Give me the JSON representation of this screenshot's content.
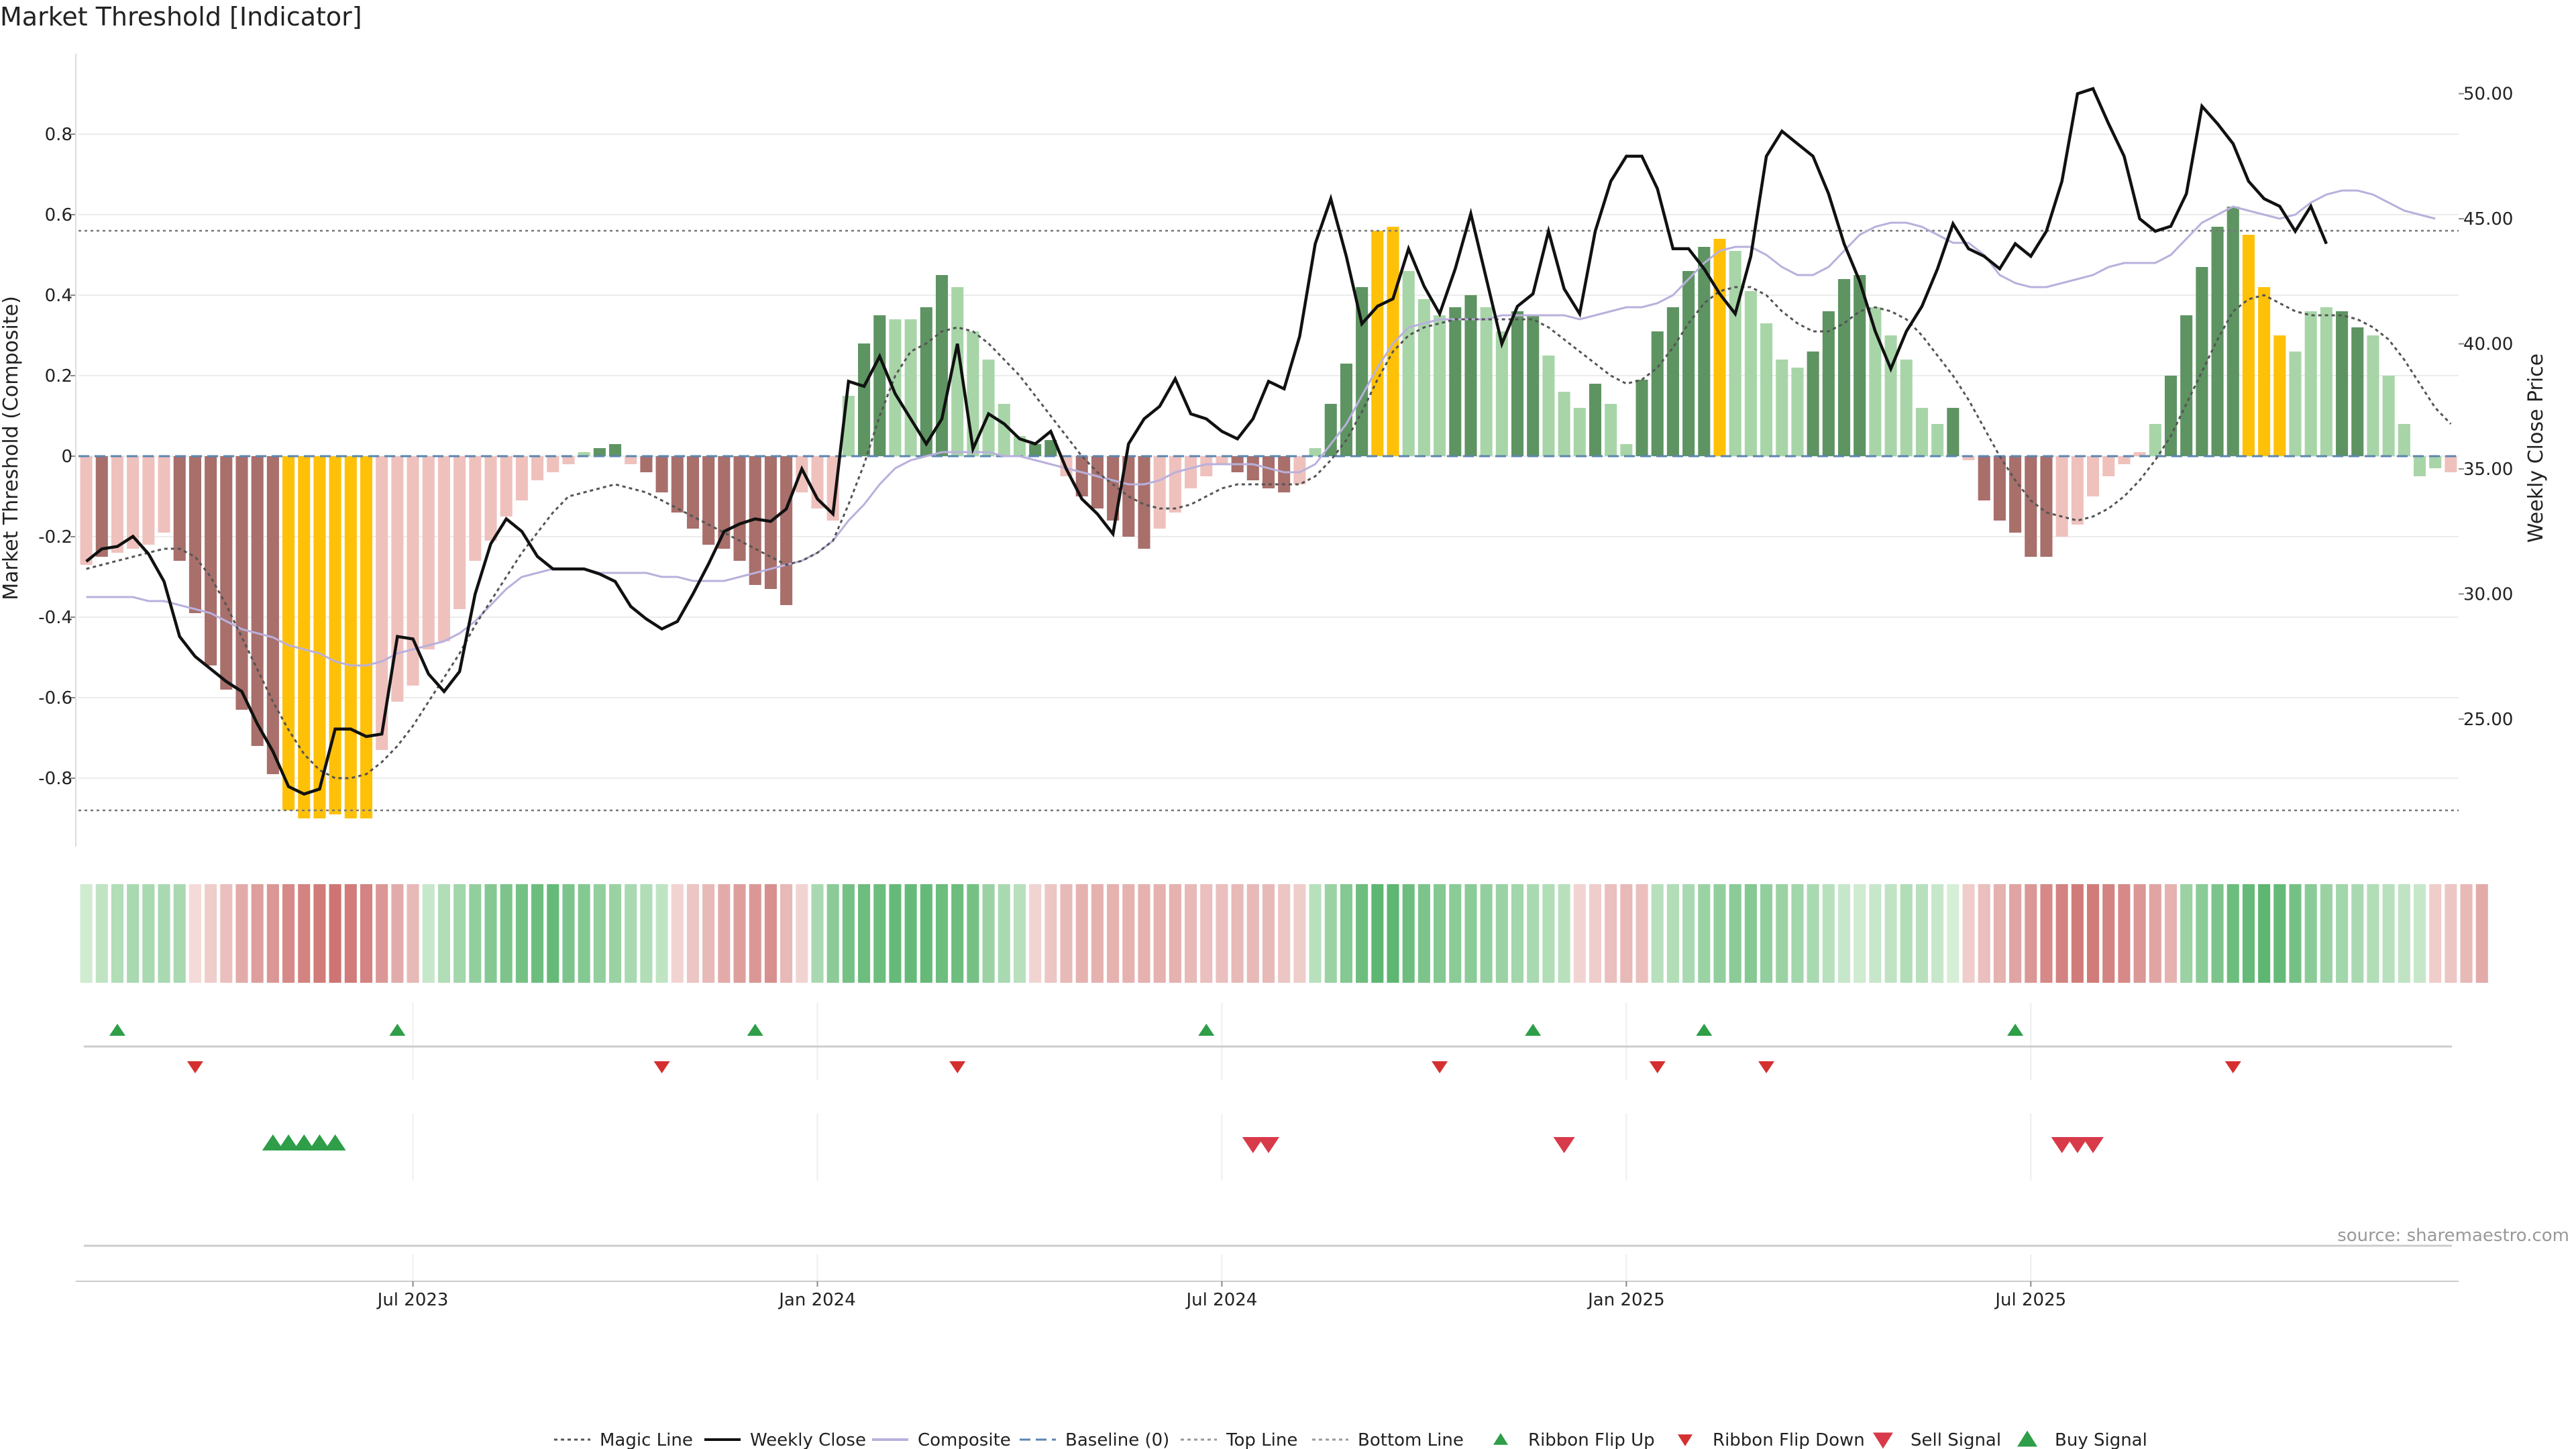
{
  "title": "Market Threshold [Indicator]",
  "source": "source: sharemaestro.com",
  "chart_data": {
    "type": "bar",
    "ylabel_left": "Market Threshold (Composite)",
    "ylabel_right": "Weekly Close Price",
    "ylim_left": [
      -0.97,
      1.0
    ],
    "ylim_right": [
      19.9,
      51.6
    ],
    "yticks_left": [
      "0.8",
      "0.6",
      "0.4",
      "0.2",
      "0",
      "-0.2",
      "-0.4",
      "-0.6",
      "-0.8"
    ],
    "yticks_left_values": [
      0.8,
      0.6,
      0.4,
      0.2,
      0,
      -0.2,
      -0.4,
      -0.6,
      -0.8
    ],
    "yticks_right": [
      "50.00",
      "45.00",
      "40.00",
      "35.00",
      "30.00",
      "25.00"
    ],
    "yticks_right_values": [
      50,
      45,
      40,
      35,
      30,
      25
    ],
    "xticks": [
      "Jul 2023",
      "Jan 2024",
      "Jul 2024",
      "Jan 2025",
      "Jul 2025"
    ],
    "xticks_index": [
      21,
      47,
      73,
      99,
      125
    ],
    "top_line": 0.56,
    "bottom_line": -0.88,
    "baseline": 0,
    "composite": [
      -0.27,
      -0.25,
      -0.24,
      -0.23,
      -0.22,
      -0.19,
      -0.26,
      -0.39,
      -0.52,
      -0.58,
      -0.63,
      -0.72,
      -0.79,
      -0.88,
      -0.9,
      -0.9,
      -0.89,
      -0.9,
      -0.9,
      -0.73,
      -0.61,
      -0.57,
      -0.48,
      -0.46,
      -0.38,
      -0.26,
      -0.21,
      -0.15,
      -0.11,
      -0.06,
      -0.04,
      -0.02,
      0.01,
      0.02,
      0.03,
      -0.02,
      -0.04,
      -0.09,
      -0.14,
      -0.18,
      -0.22,
      -0.23,
      -0.26,
      -0.32,
      -0.33,
      -0.37,
      -0.09,
      -0.13,
      -0.16,
      0.15,
      0.28,
      0.35,
      0.34,
      0.34,
      0.37,
      0.45,
      0.42,
      0.31,
      0.24,
      0.13,
      0.05,
      0.03,
      0.04,
      -0.05,
      -0.1,
      -0.13,
      -0.16,
      -0.2,
      -0.23,
      -0.18,
      -0.14,
      -0.08,
      -0.05,
      -0.02,
      -0.04,
      -0.06,
      -0.08,
      -0.09,
      -0.07,
      0.02,
      0.13,
      0.23,
      0.42,
      0.56,
      0.57,
      0.46,
      0.39,
      0.35,
      0.37,
      0.4,
      0.37,
      0.31,
      0.36,
      0.35,
      0.25,
      0.16,
      0.12,
      0.18,
      0.13,
      0.03,
      0.19,
      0.31,
      0.37,
      0.46,
      0.52,
      0.54,
      0.51,
      0.41,
      0.33,
      0.24,
      0.22,
      0.26,
      0.36,
      0.44,
      0.45,
      0.37,
      0.3,
      0.24,
      0.12,
      0.08,
      0.12,
      -0.01,
      -0.11,
      -0.16,
      -0.19,
      -0.25,
      -0.25,
      -0.2,
      -0.17,
      -0.1,
      -0.05,
      -0.02,
      0.01,
      0.08,
      0.2,
      0.35,
      0.47,
      0.57,
      0.62,
      0.55,
      0.42,
      0.3,
      0.26,
      0.36,
      0.37,
      0.36,
      0.32,
      0.3,
      0.2,
      0.08,
      -0.05,
      -0.03,
      -0.04
    ],
    "bar_colors": [
      "#efc1bd",
      "#a86f6b",
      "#efc1bd",
      "#efc1bd",
      "#efc1bd",
      "#efc1bd",
      "#a86f6b",
      "#a86f6b",
      "#a86f6b",
      "#a86f6b",
      "#a86f6b",
      "#a86f6b",
      "#a86f6b",
      "#ffc107",
      "#ffc107",
      "#ffc107",
      "#ffc107",
      "#ffc107",
      "#ffc107",
      "#efc1bd",
      "#efc1bd",
      "#efc1bd",
      "#efc1bd",
      "#efc1bd",
      "#efc1bd",
      "#efc1bd",
      "#efc1bd",
      "#efc1bd",
      "#efc1bd",
      "#efc1bd",
      "#efc1bd",
      "#efc1bd",
      "#a8d5a8",
      "#5e9462",
      "#5e9462",
      "#efc1bd",
      "#a86f6b",
      "#a86f6b",
      "#a86f6b",
      "#a86f6b",
      "#a86f6b",
      "#a86f6b",
      "#a86f6b",
      "#a86f6b",
      "#a86f6b",
      "#a86f6b",
      "#efc1bd",
      "#efc1bd",
      "#efc1bd",
      "#a8d5a8",
      "#5e9462",
      "#5e9462",
      "#a8d5a8",
      "#a8d5a8",
      "#5e9462",
      "#5e9462",
      "#a8d5a8",
      "#a8d5a8",
      "#a8d5a8",
      "#a8d5a8",
      "#a8d5a8",
      "#5e9462",
      "#5e9462",
      "#efc1bd",
      "#a86f6b",
      "#a86f6b",
      "#a86f6b",
      "#a86f6b",
      "#a86f6b",
      "#efc1bd",
      "#efc1bd",
      "#efc1bd",
      "#efc1bd",
      "#efc1bd",
      "#a86f6b",
      "#a86f6b",
      "#a86f6b",
      "#a86f6b",
      "#efc1bd",
      "#a8d5a8",
      "#5e9462",
      "#5e9462",
      "#5e9462",
      "#ffc107",
      "#ffc107",
      "#a8d5a8",
      "#a8d5a8",
      "#a8d5a8",
      "#5e9462",
      "#5e9462",
      "#a8d5a8",
      "#a8d5a8",
      "#5e9462",
      "#5e9462",
      "#a8d5a8",
      "#a8d5a8",
      "#a8d5a8",
      "#5e9462",
      "#a8d5a8",
      "#a8d5a8",
      "#5e9462",
      "#5e9462",
      "#5e9462",
      "#5e9462",
      "#5e9462",
      "#ffc107",
      "#a8d5a8",
      "#a8d5a8",
      "#a8d5a8",
      "#a8d5a8",
      "#a8d5a8",
      "#5e9462",
      "#5e9462",
      "#5e9462",
      "#5e9462",
      "#a8d5a8",
      "#a8d5a8",
      "#a8d5a8",
      "#a8d5a8",
      "#a8d5a8",
      "#5e9462",
      "#efc1bd",
      "#a86f6b",
      "#a86f6b",
      "#a86f6b",
      "#a86f6b",
      "#a86f6b",
      "#efc1bd",
      "#efc1bd",
      "#efc1bd",
      "#efc1bd",
      "#efc1bd",
      "#efc1bd",
      "#a8d5a8",
      "#5e9462",
      "#5e9462",
      "#5e9462",
      "#5e9462",
      "#5e9462",
      "#ffc107",
      "#ffc107",
      "#ffc107",
      "#a8d5a8",
      "#a8d5a8",
      "#a8d5a8",
      "#5e9462",
      "#5e9462",
      "#a8d5a8",
      "#a8d5a8",
      "#a8d5a8",
      "#a8d5a8",
      "#a8d5a8",
      "#efc1bd",
      "#efc1bd",
      "#a86f6b"
    ],
    "magic_line": [
      -0.28,
      -0.27,
      -0.26,
      -0.25,
      -0.24,
      -0.23,
      -0.23,
      -0.25,
      -0.3,
      -0.37,
      -0.45,
      -0.53,
      -0.61,
      -0.68,
      -0.74,
      -0.78,
      -0.8,
      -0.8,
      -0.79,
      -0.76,
      -0.72,
      -0.67,
      -0.61,
      -0.55,
      -0.49,
      -0.42,
      -0.36,
      -0.3,
      -0.24,
      -0.19,
      -0.14,
      -0.1,
      -0.09,
      -0.08,
      -0.07,
      -0.08,
      -0.09,
      -0.11,
      -0.13,
      -0.15,
      -0.17,
      -0.19,
      -0.21,
      -0.23,
      -0.25,
      -0.27,
      -0.26,
      -0.24,
      -0.21,
      -0.12,
      -0.02,
      0.1,
      0.2,
      0.26,
      0.28,
      0.31,
      0.32,
      0.31,
      0.28,
      0.24,
      0.2,
      0.15,
      0.1,
      0.05,
      0.0,
      -0.04,
      -0.07,
      -0.1,
      -0.12,
      -0.13,
      -0.13,
      -0.12,
      -0.1,
      -0.08,
      -0.07,
      -0.07,
      -0.07,
      -0.07,
      -0.07,
      -0.05,
      -0.01,
      0.04,
      0.11,
      0.19,
      0.26,
      0.3,
      0.32,
      0.33,
      0.34,
      0.34,
      0.34,
      0.34,
      0.34,
      0.34,
      0.32,
      0.29,
      0.26,
      0.23,
      0.2,
      0.18,
      0.19,
      0.22,
      0.27,
      0.33,
      0.38,
      0.41,
      0.42,
      0.42,
      0.4,
      0.36,
      0.33,
      0.31,
      0.31,
      0.33,
      0.36,
      0.37,
      0.36,
      0.34,
      0.3,
      0.25,
      0.2,
      0.14,
      0.07,
      0.0,
      -0.06,
      -0.11,
      -0.14,
      -0.15,
      -0.16,
      -0.15,
      -0.13,
      -0.1,
      -0.06,
      -0.01,
      0.05,
      0.13,
      0.21,
      0.29,
      0.36,
      0.39,
      0.4,
      0.38,
      0.36,
      0.35,
      0.35,
      0.35,
      0.34,
      0.32,
      0.29,
      0.24,
      0.18,
      0.12,
      0.08
    ],
    "composite_line": [
      -0.35,
      -0.35,
      -0.35,
      -0.35,
      -0.36,
      -0.36,
      -0.37,
      -0.38,
      -0.39,
      -0.41,
      -0.43,
      -0.44,
      -0.45,
      -0.47,
      -0.48,
      -0.49,
      -0.51,
      -0.52,
      -0.52,
      -0.51,
      -0.49,
      -0.48,
      -0.47,
      -0.46,
      -0.44,
      -0.41,
      -0.37,
      -0.33,
      -0.3,
      -0.29,
      -0.28,
      -0.28,
      -0.28,
      -0.29,
      -0.29,
      -0.29,
      -0.29,
      -0.3,
      -0.3,
      -0.31,
      -0.31,
      -0.31,
      -0.3,
      -0.29,
      -0.28,
      -0.27,
      -0.26,
      -0.24,
      -0.21,
      -0.16,
      -0.12,
      -0.07,
      -0.03,
      -0.01,
      0.0,
      0.01,
      0.01,
      0.01,
      0.01,
      0.0,
      0.0,
      -0.01,
      -0.02,
      -0.03,
      -0.04,
      -0.05,
      -0.06,
      -0.07,
      -0.07,
      -0.06,
      -0.04,
      -0.03,
      -0.02,
      -0.02,
      -0.02,
      -0.02,
      -0.03,
      -0.04,
      -0.04,
      -0.02,
      0.03,
      0.08,
      0.15,
      0.22,
      0.28,
      0.32,
      0.33,
      0.34,
      0.34,
      0.34,
      0.34,
      0.35,
      0.35,
      0.35,
      0.35,
      0.35,
      0.34,
      0.35,
      0.36,
      0.37,
      0.37,
      0.38,
      0.4,
      0.44,
      0.48,
      0.51,
      0.52,
      0.52,
      0.5,
      0.47,
      0.45,
      0.45,
      0.47,
      0.51,
      0.55,
      0.57,
      0.58,
      0.58,
      0.57,
      0.55,
      0.53,
      0.53,
      0.5,
      0.45,
      0.43,
      0.42,
      0.42,
      0.43,
      0.44,
      0.45,
      0.47,
      0.48,
      0.48,
      0.48,
      0.5,
      0.54,
      0.58,
      0.6,
      0.62,
      0.61,
      0.6,
      0.59,
      0.6,
      0.63,
      0.65,
      0.66,
      0.66,
      0.65,
      0.63,
      0.61,
      0.6,
      0.59
    ],
    "weekly_close": [
      31.3,
      31.8,
      31.9,
      32.3,
      31.6,
      30.5,
      28.3,
      27.5,
      27.0,
      26.5,
      26.1,
      24.8,
      23.7,
      22.3,
      22.0,
      22.2,
      24.6,
      24.6,
      24.3,
      24.4,
      28.3,
      28.2,
      26.8,
      26.1,
      26.9,
      30.0,
      32.0,
      33.0,
      32.5,
      31.5,
      31.0,
      31.0,
      31.0,
      30.8,
      30.5,
      29.5,
      29.0,
      28.6,
      28.9,
      30.0,
      31.2,
      32.5,
      32.8,
      33.0,
      32.9,
      33.4,
      35.0,
      33.8,
      33.2,
      38.5,
      38.3,
      39.5,
      38.0,
      37.0,
      36.0,
      37.0,
      40.0,
      35.8,
      37.2,
      36.8,
      36.2,
      36.0,
      36.5,
      35.0,
      33.8,
      33.2,
      32.4,
      36.0,
      37.0,
      37.5,
      38.6,
      37.2,
      37.0,
      36.5,
      36.2,
      37.0,
      38.5,
      38.2,
      40.3,
      44.0,
      45.8,
      43.5,
      40.8,
      41.5,
      41.8,
      43.8,
      42.3,
      41.2,
      43.0,
      45.2,
      42.6,
      40.0,
      41.5,
      42.0,
      44.5,
      42.2,
      41.2,
      44.5,
      46.5,
      47.5,
      47.5,
      46.2,
      43.8,
      43.8,
      43.0,
      42.0,
      41.2,
      43.5,
      47.5,
      48.5,
      48.0,
      47.5,
      46.0,
      44.0,
      42.5,
      40.5,
      39.0,
      40.5,
      41.5,
      43.0,
      44.8,
      43.8,
      43.5,
      43.0,
      44.0,
      43.5,
      44.5,
      46.5,
      50.0,
      50.2,
      48.8,
      47.5,
      45.0,
      44.5,
      44.7,
      46.0,
      49.5,
      48.8,
      48.0,
      46.5,
      45.8,
      45.5,
      44.5,
      45.5,
      44.0
    ],
    "ribbon_index": [
      0.05,
      0.15,
      0.25,
      0.3,
      0.3,
      0.3,
      0.3,
      -0.05,
      -0.15,
      -0.25,
      -0.4,
      -0.5,
      -0.55,
      -0.65,
      -0.7,
      -0.75,
      -0.8,
      -0.75,
      -0.7,
      -0.55,
      -0.4,
      -0.3,
      0.1,
      0.25,
      0.35,
      0.45,
      0.55,
      0.6,
      0.65,
      0.7,
      0.75,
      0.6,
      0.55,
      0.45,
      0.4,
      0.3,
      0.25,
      0.15,
      -0.1,
      -0.2,
      -0.3,
      -0.4,
      -0.5,
      -0.55,
      -0.6,
      -0.3,
      -0.1,
      0.3,
      0.5,
      0.65,
      0.7,
      0.7,
      0.75,
      0.75,
      0.75,
      0.7,
      0.7,
      0.65,
      0.4,
      0.3,
      0.2,
      -0.1,
      -0.2,
      -0.3,
      -0.35,
      -0.35,
      -0.35,
      -0.35,
      -0.35,
      -0.35,
      -0.35,
      -0.3,
      -0.25,
      -0.25,
      -0.3,
      -0.3,
      -0.3,
      -0.2,
      -0.15,
      0.2,
      0.4,
      0.55,
      0.7,
      0.8,
      0.8,
      0.7,
      0.6,
      0.55,
      0.5,
      0.5,
      0.45,
      0.4,
      0.35,
      0.3,
      0.25,
      0.2,
      -0.1,
      -0.15,
      -0.25,
      -0.3,
      -0.25,
      0.2,
      0.25,
      0.3,
      0.4,
      0.45,
      0.5,
      0.55,
      0.45,
      0.4,
      0.35,
      0.3,
      0.2,
      0.1,
      0.05,
      0.1,
      0.15,
      0.25,
      0.2,
      0.1,
      0.0,
      -0.15,
      -0.25,
      -0.35,
      -0.45,
      -0.55,
      -0.65,
      -0.7,
      -0.75,
      -0.75,
      -0.7,
      -0.65,
      -0.55,
      -0.45,
      -0.35,
      0.4,
      0.5,
      0.6,
      0.7,
      0.75,
      0.8,
      0.75,
      0.65,
      0.5,
      0.4,
      0.35,
      0.3,
      0.25,
      0.2,
      0.15,
      0.1,
      -0.15,
      -0.2,
      -0.3,
      -0.4
    ],
    "ribbon_flip_up": [
      2,
      20,
      43,
      72,
      93,
      104,
      124
    ],
    "ribbon_flip_down": [
      7,
      37,
      56,
      87,
      101,
      108,
      138
    ],
    "buy_signal": [
      12,
      13,
      14,
      15,
      16
    ],
    "sell_signal": [
      75,
      76,
      95,
      127,
      128,
      129
    ],
    "legend": [
      "Magic Line",
      "Weekly Close",
      "Composite",
      "Baseline (0)",
      "Top Line",
      "Bottom Line",
      "Ribbon Flip Up",
      "Ribbon Flip Down",
      "Sell Signal",
      "Buy Signal"
    ]
  }
}
